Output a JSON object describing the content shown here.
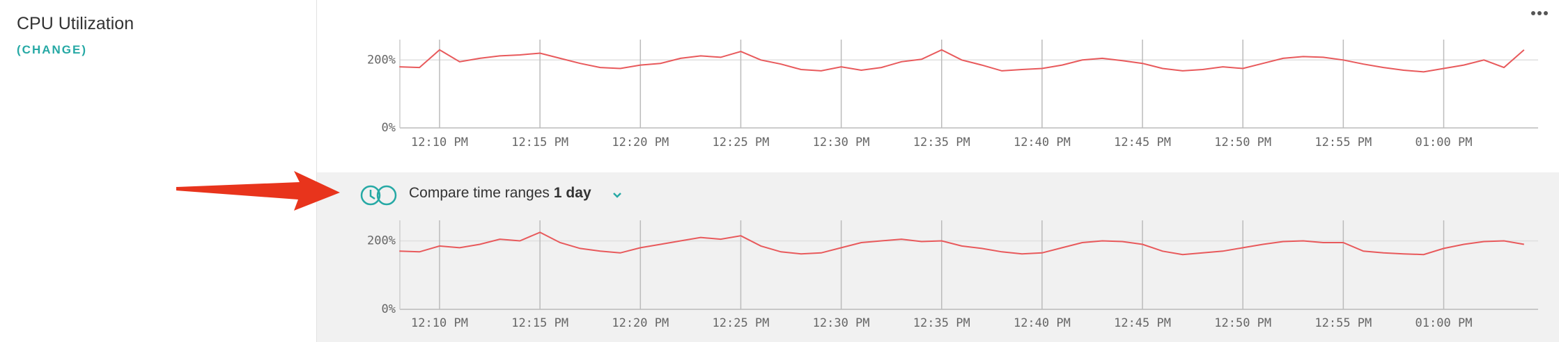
{
  "title": "CPU Utilization",
  "change_link": "(CHANGE)",
  "compare": {
    "label": "Compare time ranges",
    "value": "1 day"
  },
  "chart_data": [
    {
      "type": "line",
      "color": "#e8595b",
      "x": [
        "12:08 PM",
        "12:09 PM",
        "12:10 PM",
        "12:11 PM",
        "12:12 PM",
        "12:13 PM",
        "12:14 PM",
        "12:15 PM",
        "12:16 PM",
        "12:17 PM",
        "12:18 PM",
        "12:19 PM",
        "12:20 PM",
        "12:21 PM",
        "12:22 PM",
        "12:23 PM",
        "12:24 PM",
        "12:25 PM",
        "12:26 PM",
        "12:27 PM",
        "12:28 PM",
        "12:29 PM",
        "12:30 PM",
        "12:31 PM",
        "12:32 PM",
        "12:33 PM",
        "12:34 PM",
        "12:35 PM",
        "12:36 PM",
        "12:37 PM",
        "12:38 PM",
        "12:39 PM",
        "12:40 PM",
        "12:41 PM",
        "12:42 PM",
        "12:43 PM",
        "12:44 PM",
        "12:45 PM",
        "12:46 PM",
        "12:47 PM",
        "12:48 PM",
        "12:49 PM",
        "12:50 PM",
        "12:51 PM",
        "12:52 PM",
        "12:53 PM",
        "12:54 PM",
        "12:55 PM",
        "12:56 PM",
        "12:57 PM",
        "12:58 PM",
        "12:59 PM",
        "01:00 PM",
        "01:01 PM",
        "01:02 PM",
        "01:03 PM",
        "01:04 PM"
      ],
      "values": [
        180,
        178,
        230,
        195,
        205,
        212,
        215,
        220,
        205,
        190,
        178,
        175,
        185,
        190,
        205,
        212,
        208,
        225,
        200,
        188,
        172,
        168,
        180,
        170,
        178,
        195,
        202,
        230,
        200,
        185,
        168,
        172,
        175,
        185,
        200,
        205,
        198,
        190,
        175,
        168,
        172,
        180,
        175,
        190,
        205,
        210,
        208,
        200,
        188,
        178,
        170,
        165,
        175,
        185,
        200,
        178,
        230
      ],
      "ylim": [
        0,
        260
      ],
      "yticks": [
        {
          "value": 0,
          "label": "0%"
        },
        {
          "value": 200,
          "label": "200%"
        }
      ],
      "xticks": [
        "12:10 PM",
        "12:15 PM",
        "12:20 PM",
        "12:25 PM",
        "12:30 PM",
        "12:35 PM",
        "12:40 PM",
        "12:45 PM",
        "12:50 PM",
        "12:55 PM",
        "01:00 PM"
      ],
      "grid": true
    },
    {
      "type": "line",
      "color": "#e8595b",
      "x": [
        "12:08 PM",
        "12:09 PM",
        "12:10 PM",
        "12:11 PM",
        "12:12 PM",
        "12:13 PM",
        "12:14 PM",
        "12:15 PM",
        "12:16 PM",
        "12:17 PM",
        "12:18 PM",
        "12:19 PM",
        "12:20 PM",
        "12:21 PM",
        "12:22 PM",
        "12:23 PM",
        "12:24 PM",
        "12:25 PM",
        "12:26 PM",
        "12:27 PM",
        "12:28 PM",
        "12:29 PM",
        "12:30 PM",
        "12:31 PM",
        "12:32 PM",
        "12:33 PM",
        "12:34 PM",
        "12:35 PM",
        "12:36 PM",
        "12:37 PM",
        "12:38 PM",
        "12:39 PM",
        "12:40 PM",
        "12:41 PM",
        "12:42 PM",
        "12:43 PM",
        "12:44 PM",
        "12:45 PM",
        "12:46 PM",
        "12:47 PM",
        "12:48 PM",
        "12:49 PM",
        "12:50 PM",
        "12:51 PM",
        "12:52 PM",
        "12:53 PM",
        "12:54 PM",
        "12:55 PM",
        "12:56 PM",
        "12:57 PM",
        "12:58 PM",
        "12:59 PM",
        "01:00 PM",
        "01:01 PM",
        "01:02 PM",
        "01:03 PM",
        "01:04 PM"
      ],
      "values": [
        170,
        168,
        185,
        180,
        190,
        205,
        200,
        225,
        195,
        178,
        170,
        165,
        180,
        190,
        200,
        210,
        205,
        215,
        185,
        168,
        162,
        165,
        180,
        195,
        200,
        205,
        198,
        200,
        185,
        178,
        168,
        162,
        165,
        180,
        195,
        200,
        198,
        190,
        170,
        160,
        165,
        170,
        180,
        190,
        198,
        200,
        195,
        195,
        170,
        165,
        162,
        160,
        178,
        190,
        198,
        200,
        190
      ],
      "ylim": [
        0,
        260
      ],
      "yticks": [
        {
          "value": 0,
          "label": "0%"
        },
        {
          "value": 200,
          "label": "200%"
        }
      ],
      "xticks": [
        "12:10 PM",
        "12:15 PM",
        "12:20 PM",
        "12:25 PM",
        "12:30 PM",
        "12:35 PM",
        "12:40 PM",
        "12:45 PM",
        "12:50 PM",
        "12:55 PM",
        "01:00 PM"
      ],
      "grid": true
    }
  ]
}
